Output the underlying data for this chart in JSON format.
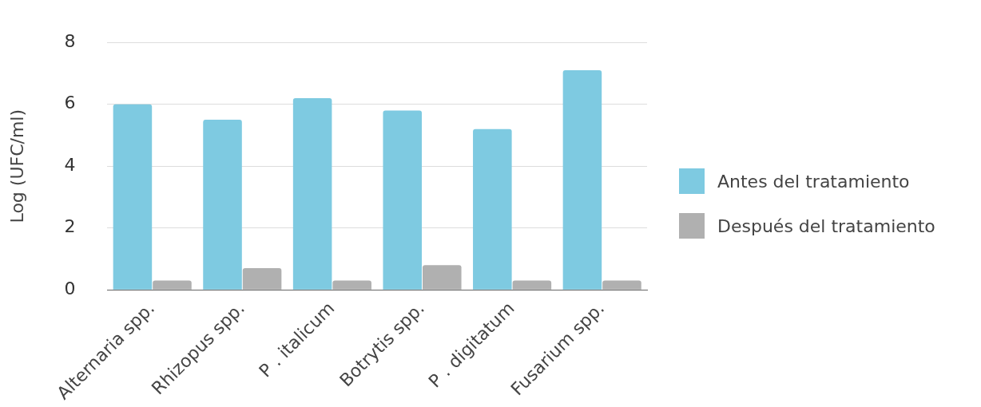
{
  "chart_data": {
    "type": "bar",
    "ylabel": "Log (UFC/ml)",
    "categories": [
      "Alternaria spp.",
      "Rhizopus spp.",
      "P . italicum",
      "Botrytis spp.",
      "P . digitatum",
      "Fusarium spp."
    ],
    "series": [
      {
        "name": "Antes del tratamiento",
        "color": "#7ecae1",
        "values": [
          6.0,
          5.5,
          6.2,
          5.8,
          5.2,
          7.1
        ]
      },
      {
        "name": "Después del tratamiento",
        "color": "#b0b0b0",
        "values": [
          0.3,
          0.7,
          0.3,
          0.8,
          0.3,
          0.3
        ]
      }
    ],
    "ylim": [
      0,
      8
    ],
    "yticks": [
      0,
      2,
      4,
      6,
      8
    ],
    "grid": "y",
    "legend": "right"
  }
}
